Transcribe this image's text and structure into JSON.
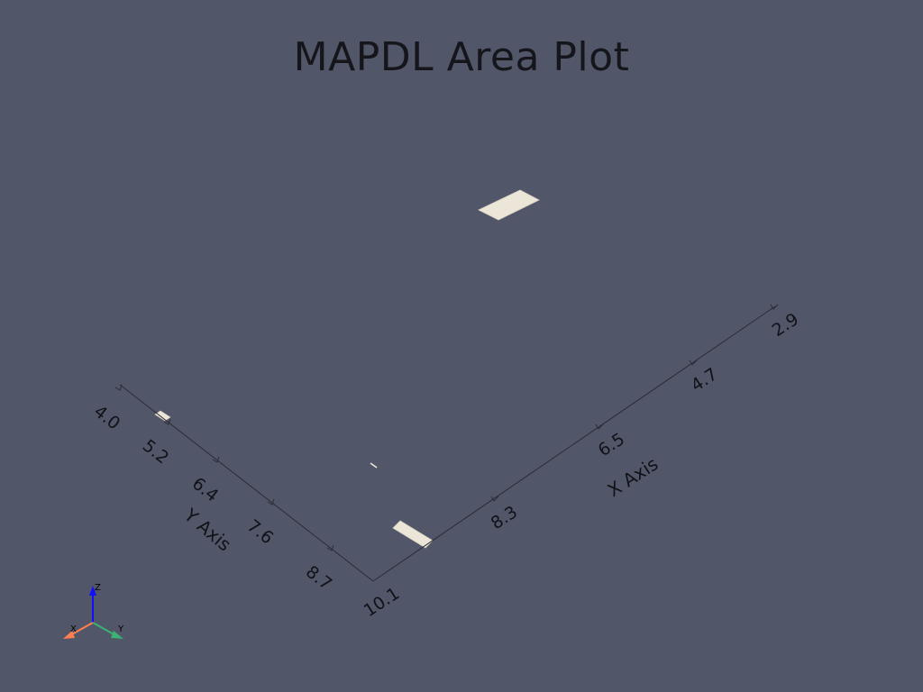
{
  "title": "MAPDL Area Plot",
  "x_axis": {
    "title": "X Axis",
    "ticks": [
      "10.1",
      "8.3",
      "6.5",
      "4.7",
      "2.9"
    ]
  },
  "y_axis": {
    "title": "Y Axis",
    "ticks": [
      "4.0",
      "5.2",
      "6.4",
      "7.6",
      "8.7"
    ]
  },
  "orientation_triad": {
    "x_label": "X",
    "y_label": "Y",
    "z_label": "Z",
    "x_color": "#ff7f50",
    "y_color": "#3cb371",
    "z_color": "#1010ff"
  },
  "colors": {
    "background": "#525669",
    "area_fill": "#ece6d8",
    "axis_line": "#2a2c36"
  }
}
